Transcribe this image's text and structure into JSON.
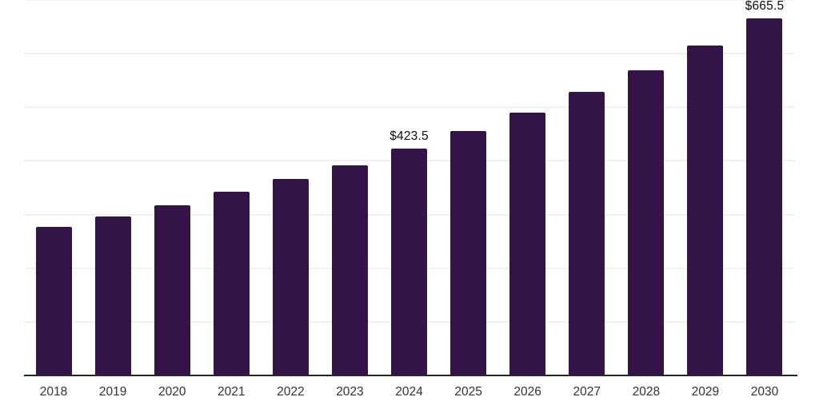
{
  "chart_data": {
    "type": "bar",
    "title": "",
    "xlabel": "",
    "ylabel": "",
    "categories": [
      "2018",
      "2019",
      "2020",
      "2021",
      "2022",
      "2023",
      "2024",
      "2025",
      "2026",
      "2027",
      "2028",
      "2029",
      "2030"
    ],
    "values": [
      277.5,
      296.5,
      317.5,
      343,
      366,
      392,
      423.5,
      455.5,
      490,
      528.5,
      569.5,
      615.5,
      665.5
    ],
    "data_labels": [
      {
        "index": 6,
        "text": "$423.5"
      },
      {
        "index": 12,
        "text": "$665.5"
      }
    ],
    "ylim": [
      0,
      700
    ],
    "gridline_interval": 100,
    "grid": true,
    "y_axis_tick_labels_visible": false,
    "legend": "none",
    "colors": {
      "bar": "#341348",
      "axis_line": "#262626",
      "gridline": "#f2f2f2",
      "data_label_text": "#0d0d0d",
      "tick_label_text": "#333333",
      "background": "#ffffff"
    }
  }
}
